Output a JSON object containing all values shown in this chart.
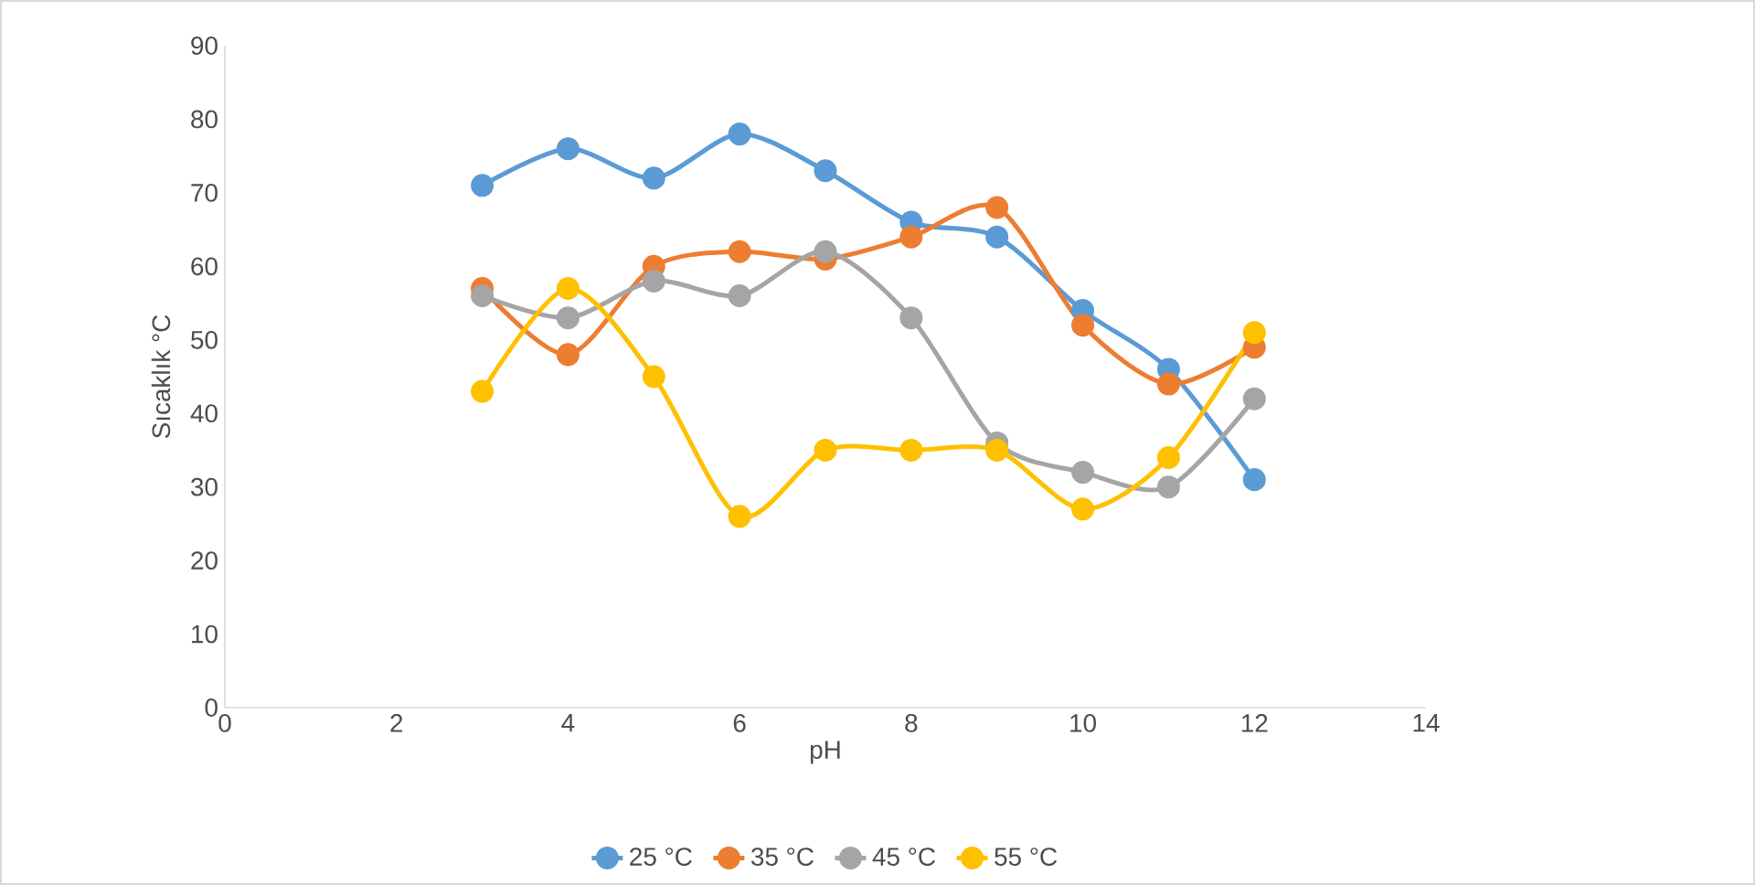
{
  "chart_data": {
    "type": "line",
    "xlabel": "pH",
    "ylabel": "Sıcaklık °C",
    "x": [
      3,
      4,
      5,
      6,
      7,
      8,
      9,
      10,
      11,
      12
    ],
    "series": [
      {
        "name": "25 °C",
        "color": "#5b9bd5",
        "values": [
          71,
          76,
          72,
          78,
          73,
          66,
          64,
          54,
          46,
          31
        ]
      },
      {
        "name": "35 °C",
        "color": "#ed7d31",
        "values": [
          57,
          48,
          60,
          62,
          61,
          64,
          68,
          52,
          44,
          49
        ]
      },
      {
        "name": "45 °C",
        "color": "#a5a5a5",
        "values": [
          56,
          53,
          58,
          56,
          62,
          53,
          36,
          32,
          30,
          42
        ]
      },
      {
        "name": "55 °C",
        "color": "#ffc000",
        "values": [
          43,
          57,
          45,
          26,
          35,
          35,
          35,
          27,
          34,
          51
        ]
      }
    ],
    "xlim": [
      0,
      14
    ],
    "xticks": [
      0,
      2,
      4,
      6,
      8,
      10,
      12,
      14
    ],
    "ylim": [
      0,
      90
    ],
    "yticks": [
      0,
      10,
      20,
      30,
      40,
      50,
      60,
      70,
      80,
      90
    ],
    "grid": false,
    "legend": "bottom",
    "marker": "circle",
    "line_style": "solid"
  }
}
